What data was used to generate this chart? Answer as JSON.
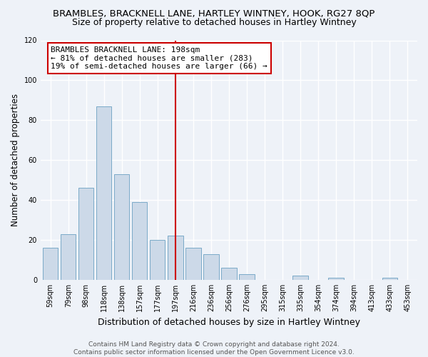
{
  "title": "BRAMBLES, BRACKNELL LANE, HARTLEY WINTNEY, HOOK, RG27 8QP",
  "subtitle": "Size of property relative to detached houses in Hartley Wintney",
  "xlabel": "Distribution of detached houses by size in Hartley Wintney",
  "ylabel": "Number of detached properties",
  "bar_labels": [
    "59sqm",
    "79sqm",
    "98sqm",
    "118sqm",
    "138sqm",
    "157sqm",
    "177sqm",
    "197sqm",
    "216sqm",
    "236sqm",
    "256sqm",
    "276sqm",
    "295sqm",
    "315sqm",
    "335sqm",
    "354sqm",
    "374sqm",
    "394sqm",
    "413sqm",
    "433sqm",
    "453sqm"
  ],
  "bar_values": [
    16,
    23,
    46,
    87,
    53,
    39,
    20,
    22,
    16,
    13,
    6,
    3,
    0,
    0,
    2,
    0,
    1,
    0,
    0,
    1,
    0
  ],
  "bar_color": "#ccd9e8",
  "bar_edgecolor": "#7aaac8",
  "vline_x_index": 7,
  "vline_color": "#cc0000",
  "annotation_title": "BRAMBLES BRACKNELL LANE: 198sqm",
  "annotation_line1": "← 81% of detached houses are smaller (283)",
  "annotation_line2": "19% of semi-detached houses are larger (66) →",
  "ylim": [
    0,
    120
  ],
  "yticks": [
    0,
    20,
    40,
    60,
    80,
    100,
    120
  ],
  "footer_line1": "Contains HM Land Registry data © Crown copyright and database right 2024.",
  "footer_line2": "Contains public sector information licensed under the Open Government Licence v3.0.",
  "bg_color": "#eef2f8",
  "grid_color": "#ffffff",
  "title_fontsize": 9.5,
  "subtitle_fontsize": 9,
  "xlabel_fontsize": 9,
  "ylabel_fontsize": 8.5,
  "tick_fontsize": 7,
  "annotation_fontsize": 8,
  "footer_fontsize": 6.5
}
